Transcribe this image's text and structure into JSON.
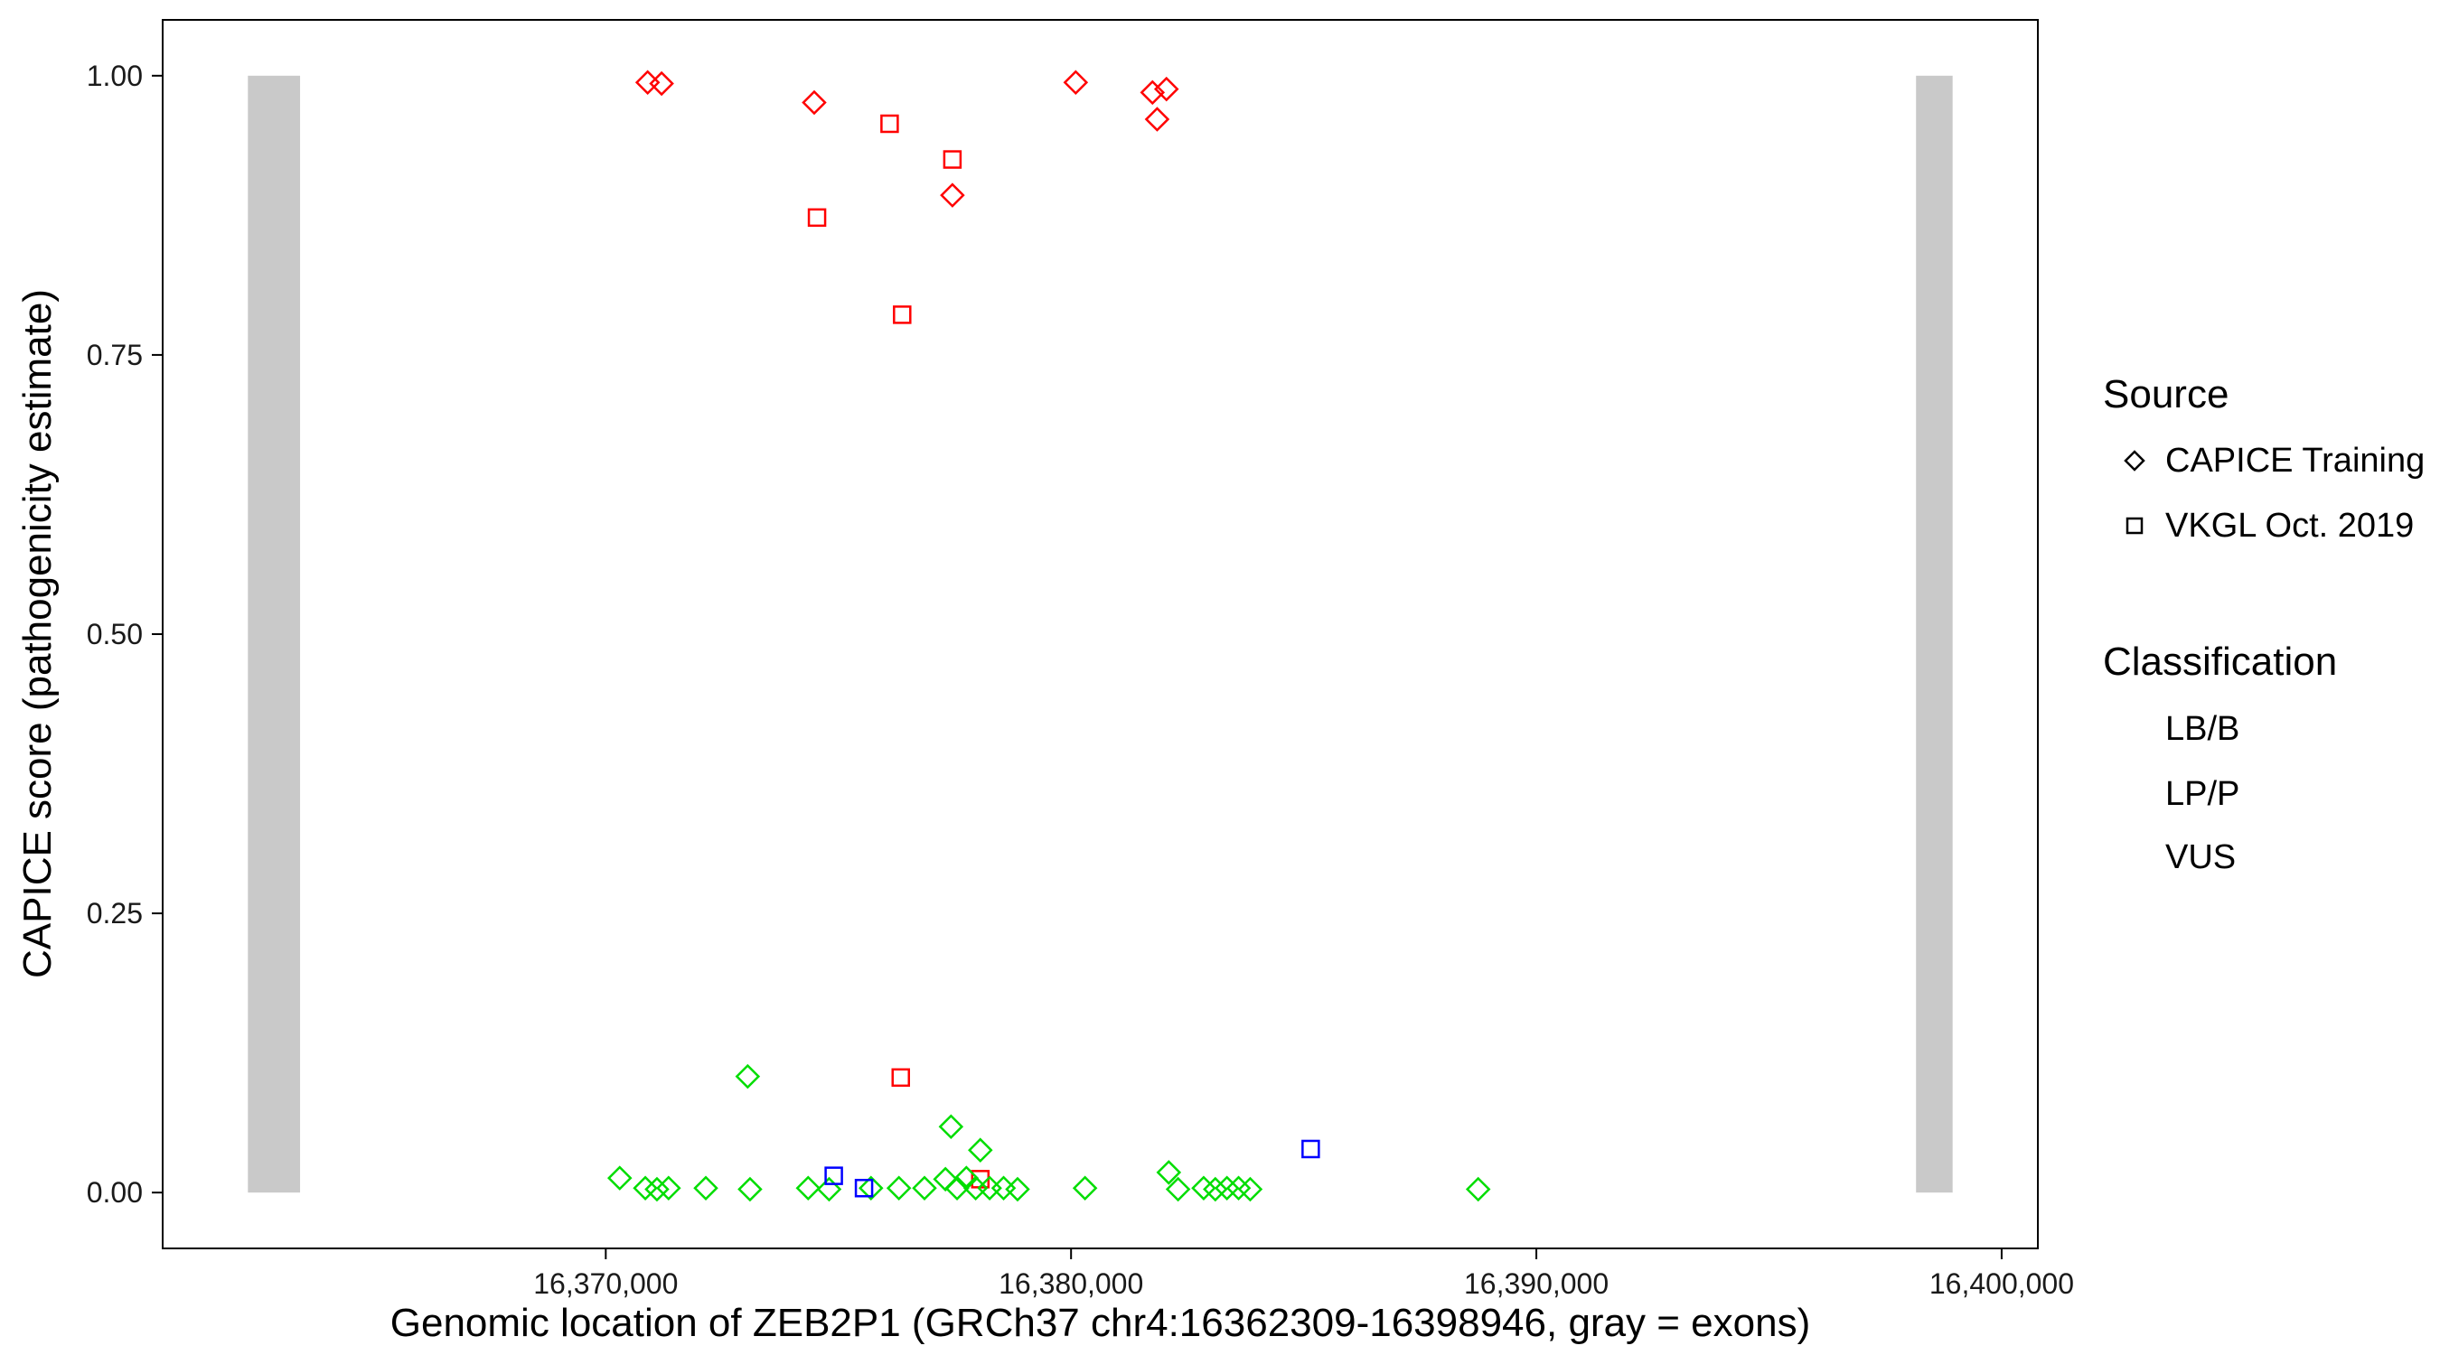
{
  "figure": {
    "background": "#ffffff",
    "panel_border_color": "#000000"
  },
  "legend": {
    "source": {
      "title": "Source",
      "items": [
        {
          "label": "CAPICE Training",
          "shape": "diamond"
        },
        {
          "label": "VKGL Oct. 2019",
          "shape": "square"
        }
      ]
    },
    "classification": {
      "title": "Classification",
      "items": [
        {
          "label": "LB/B",
          "color": "#00DD00"
        },
        {
          "label": "LP/P",
          "color": "#FF0000"
        },
        {
          "label": "VUS",
          "color": "#0000FF"
        }
      ]
    }
  },
  "chart_data": {
    "type": "scatter",
    "title": "",
    "xlabel": "Genomic location of ZEB2P1 (GRCh37 chr4:16362309-16398946, gray = exons)",
    "ylabel": "CAPICE score (pathogenicity estimate)",
    "xlim": [
      16360477,
      16400778
    ],
    "ylim": [
      -0.05,
      1.05
    ],
    "grid": false,
    "legend_position": "right",
    "x_ticks": [
      {
        "value": 16370000,
        "label": "16,370,000"
      },
      {
        "value": 16380000,
        "label": "16,380,000"
      },
      {
        "value": 16390000,
        "label": "16,390,000"
      },
      {
        "value": 16400000,
        "label": "16,400,000"
      }
    ],
    "y_ticks": [
      {
        "value": 0.0,
        "label": "0.00"
      },
      {
        "value": 0.25,
        "label": "0.25"
      },
      {
        "value": 0.5,
        "label": "0.50"
      },
      {
        "value": 0.75,
        "label": "0.75"
      },
      {
        "value": 1.0,
        "label": "1.00"
      }
    ],
    "exons": [
      [
        16362309,
        16363430
      ],
      [
        16398160,
        16398946
      ]
    ],
    "exon_y_range": [
      0.0,
      1.0
    ],
    "exon_color": "#C9C9C9",
    "shape_by_source": {
      "CAPICE Training": "diamond",
      "VKGL Oct. 2019": "square"
    },
    "color_by_classification": {
      "LB/B": "#00DD00",
      "LP/P": "#FF0000",
      "VUS": "#0000FF"
    },
    "points": [
      {
        "x": 16370900,
        "y": 0.994,
        "source": "CAPICE Training",
        "classification": "LP/P"
      },
      {
        "x": 16371200,
        "y": 0.993,
        "source": "CAPICE Training",
        "classification": "LP/P"
      },
      {
        "x": 16374480,
        "y": 0.976,
        "source": "CAPICE Training",
        "classification": "LP/P"
      },
      {
        "x": 16377450,
        "y": 0.893,
        "source": "CAPICE Training",
        "classification": "LP/P"
      },
      {
        "x": 16380100,
        "y": 0.994,
        "source": "CAPICE Training",
        "classification": "LP/P"
      },
      {
        "x": 16381750,
        "y": 0.985,
        "source": "CAPICE Training",
        "classification": "LP/P"
      },
      {
        "x": 16382050,
        "y": 0.988,
        "source": "CAPICE Training",
        "classification": "LP/P"
      },
      {
        "x": 16381850,
        "y": 0.961,
        "source": "CAPICE Training",
        "classification": "LP/P"
      },
      {
        "x": 16374540,
        "y": 0.873,
        "source": "VKGL Oct. 2019",
        "classification": "LP/P"
      },
      {
        "x": 16376100,
        "y": 0.957,
        "source": "VKGL Oct. 2019",
        "classification": "LP/P"
      },
      {
        "x": 16377450,
        "y": 0.925,
        "source": "VKGL Oct. 2019",
        "classification": "LP/P"
      },
      {
        "x": 16376370,
        "y": 0.786,
        "source": "VKGL Oct. 2019",
        "classification": "LP/P"
      },
      {
        "x": 16376340,
        "y": 0.103,
        "source": "VKGL Oct. 2019",
        "classification": "LP/P"
      },
      {
        "x": 16378050,
        "y": 0.012,
        "source": "VKGL Oct. 2019",
        "classification": "LP/P"
      },
      {
        "x": 16373050,
        "y": 0.104,
        "source": "CAPICE Training",
        "classification": "LB/B"
      },
      {
        "x": 16377420,
        "y": 0.059,
        "source": "CAPICE Training",
        "classification": "LB/B"
      },
      {
        "x": 16378050,
        "y": 0.038,
        "source": "CAPICE Training",
        "classification": "LB/B"
      },
      {
        "x": 16370300,
        "y": 0.013,
        "source": "CAPICE Training",
        "classification": "LB/B"
      },
      {
        "x": 16370850,
        "y": 0.004,
        "source": "CAPICE Training",
        "classification": "LB/B"
      },
      {
        "x": 16371100,
        "y": 0.003,
        "source": "CAPICE Training",
        "classification": "LB/B"
      },
      {
        "x": 16371350,
        "y": 0.004,
        "source": "CAPICE Training",
        "classification": "LB/B"
      },
      {
        "x": 16372150,
        "y": 0.004,
        "source": "CAPICE Training",
        "classification": "LB/B"
      },
      {
        "x": 16373100,
        "y": 0.003,
        "source": "CAPICE Training",
        "classification": "LB/B"
      },
      {
        "x": 16374350,
        "y": 0.004,
        "source": "CAPICE Training",
        "classification": "LB/B"
      },
      {
        "x": 16374800,
        "y": 0.003,
        "source": "CAPICE Training",
        "classification": "LB/B"
      },
      {
        "x": 16375700,
        "y": 0.004,
        "source": "CAPICE Training",
        "classification": "LB/B"
      },
      {
        "x": 16376300,
        "y": 0.004,
        "source": "CAPICE Training",
        "classification": "LB/B"
      },
      {
        "x": 16376850,
        "y": 0.004,
        "source": "CAPICE Training",
        "classification": "LB/B"
      },
      {
        "x": 16377300,
        "y": 0.012,
        "source": "CAPICE Training",
        "classification": "LB/B"
      },
      {
        "x": 16377550,
        "y": 0.004,
        "source": "CAPICE Training",
        "classification": "LB/B"
      },
      {
        "x": 16377750,
        "y": 0.013,
        "source": "CAPICE Training",
        "classification": "LB/B"
      },
      {
        "x": 16377950,
        "y": 0.004,
        "source": "CAPICE Training",
        "classification": "LB/B"
      },
      {
        "x": 16378250,
        "y": 0.004,
        "source": "CAPICE Training",
        "classification": "LB/B"
      },
      {
        "x": 16378550,
        "y": 0.004,
        "source": "CAPICE Training",
        "classification": "LB/B"
      },
      {
        "x": 16378850,
        "y": 0.003,
        "source": "CAPICE Training",
        "classification": "LB/B"
      },
      {
        "x": 16380300,
        "y": 0.004,
        "source": "CAPICE Training",
        "classification": "LB/B"
      },
      {
        "x": 16382100,
        "y": 0.018,
        "source": "CAPICE Training",
        "classification": "LB/B"
      },
      {
        "x": 16382300,
        "y": 0.003,
        "source": "CAPICE Training",
        "classification": "LB/B"
      },
      {
        "x": 16382850,
        "y": 0.004,
        "source": "CAPICE Training",
        "classification": "LB/B"
      },
      {
        "x": 16383100,
        "y": 0.003,
        "source": "CAPICE Training",
        "classification": "LB/B"
      },
      {
        "x": 16383350,
        "y": 0.004,
        "source": "CAPICE Training",
        "classification": "LB/B"
      },
      {
        "x": 16383600,
        "y": 0.004,
        "source": "CAPICE Training",
        "classification": "LB/B"
      },
      {
        "x": 16383850,
        "y": 0.003,
        "source": "CAPICE Training",
        "classification": "LB/B"
      },
      {
        "x": 16388750,
        "y": 0.003,
        "source": "CAPICE Training",
        "classification": "LB/B"
      },
      {
        "x": 16374900,
        "y": 0.015,
        "source": "VKGL Oct. 2019",
        "classification": "VUS"
      },
      {
        "x": 16375550,
        "y": 0.004,
        "source": "VKGL Oct. 2019",
        "classification": "VUS"
      },
      {
        "x": 16385150,
        "y": 0.039,
        "source": "VKGL Oct. 2019",
        "classification": "VUS"
      }
    ]
  }
}
